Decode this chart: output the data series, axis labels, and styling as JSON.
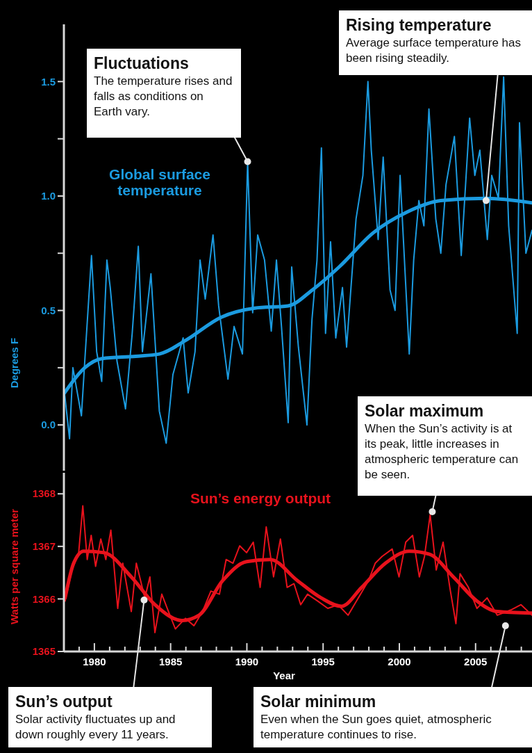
{
  "chart_data": [
    {
      "type": "line",
      "ylabel": "Degrees F",
      "xlim": [
        1978,
        2008.7
      ],
      "ylim": [
        -0.2,
        1.75
      ],
      "yticks": [
        {
          "value": 0,
          "label": "0.0"
        },
        {
          "value": 0.25,
          "label": null
        },
        0.5,
        {
          "value": 0.75,
          "label": null
        },
        {
          "value": 1,
          "label": "1.0"
        },
        {
          "value": 1.25,
          "label": null
        },
        1.5
      ],
      "tick_labels": "y",
      "series": [
        {
          "name": "Global surface temperature",
          "color": "#1b9be0",
          "x": [
            1978.04,
            1978.37,
            1978.59,
            1979.15,
            1979.37,
            1979.81,
            1980.15,
            1980.48,
            1980.82,
            1981.04,
            1981.48,
            1982.04,
            1982.48,
            1982.88,
            1983.15,
            1983.71,
            1984.26,
            1984.71,
            1985.15,
            1985.82,
            1986.15,
            1986.6,
            1986.93,
            1987.27,
            1987.78,
            1988.15,
            1988.76,
            1989.16,
            1989.71,
            1990.05,
            1990.38,
            1990.71,
            1991.16,
            1991.6,
            1991.94,
            1992.27,
            1992.71,
            1992.94,
            1993.38,
            1993.94,
            1994.27,
            1994.6,
            1994.89,
            1995.16,
            1995.49,
            1995.83,
            1996.27,
            1996.54,
            1997.16,
            1997.61,
            1997.94,
            1998.16,
            1998.61,
            1998.94,
            1999.39,
            1999.72,
            2000.05,
            2000.65,
            2000.94,
            2001.28,
            2001.61,
            2001.94,
            2002.39,
            2002.72,
            2003.06,
            2003.61,
            2004.06,
            2004.61,
            2004.95,
            2005.28,
            2005.77,
            2006.06,
            2006.5,
            2006.84,
            2007.17,
            2007.73,
            2007.88,
            2008.3,
            2008.7
          ],
          "values": [
            0.14,
            -0.06,
            0.25,
            0.04,
            0.28,
            0.74,
            0.32,
            0.19,
            0.72,
            0.6,
            0.28,
            0.07,
            0.4,
            0.78,
            0.32,
            0.66,
            0.06,
            -0.08,
            0.22,
            0.38,
            0.14,
            0.32,
            0.72,
            0.55,
            0.83,
            0.52,
            0.2,
            0.43,
            0.31,
            1.15,
            0.49,
            0.83,
            0.72,
            0.41,
            0.72,
            0.43,
            0.01,
            0.69,
            0.34,
            0.0,
            0.46,
            0.72,
            1.21,
            0.4,
            0.8,
            0.38,
            0.6,
            0.34,
            0.9,
            1.09,
            1.5,
            1.2,
            0.81,
            1.17,
            0.59,
            0.5,
            1.09,
            0.31,
            0.72,
            0.98,
            0.87,
            1.38,
            0.9,
            0.75,
            1.05,
            1.26,
            0.74,
            1.34,
            1.09,
            1.2,
            0.81,
            1.09,
            0.99,
            1.52,
            0.87,
            0.4,
            1.32,
            0.75,
            0.85
          ]
        },
        {
          "color": "#1b9be0",
          "x": [
            1978.04,
            1979.37,
            1980.5,
            1982.7,
            1984.26,
            1986,
            1988.3,
            1990.5,
            1992.7,
            1994.3,
            1996.05,
            1998.3,
            2000.5,
            2002.7,
            2005.7,
            2008.7
          ],
          "values": [
            0.14,
            0.25,
            0.29,
            0.3,
            0.31,
            0.37,
            0.47,
            0.51,
            0.52,
            0.59,
            0.69,
            0.84,
            0.93,
            0.98,
            0.99,
            0.97
          ]
        }
      ],
      "annotations": [
        {
          "text": "Fluctuations\nThe temperature rises and falls as conditions on Earth vary.",
          "x": 1990.05,
          "y": 1.15
        },
        {
          "text": "Rising temperature\nAverage surface temperature has been rising steadily.",
          "x": 2005.69,
          "y": 0.98
        }
      ]
    },
    {
      "type": "line",
      "xlabel": "Year",
      "ylabel": "Watts per square meter",
      "xlim": [
        1978,
        2008.7
      ],
      "ylim": [
        1365,
        1368.4
      ],
      "yticks": [
        1365,
        1366,
        1367,
        1368
      ],
      "xticks": [
        {
          "value": 1979,
          "label": null
        },
        1980,
        {
          "value": 1981,
          "label": null
        },
        {
          "value": 1982,
          "label": null
        },
        {
          "value": 1983,
          "label": null
        },
        {
          "value": 1984,
          "label": null
        },
        1985,
        {
          "value": 1986,
          "label": null
        },
        {
          "value": 1987,
          "label": null
        },
        {
          "value": 1988,
          "label": null
        },
        {
          "value": 1989,
          "label": null
        },
        1990,
        {
          "value": 1991,
          "label": null
        },
        {
          "value": 1992,
          "label": null
        },
        {
          "value": 1993,
          "label": null
        },
        {
          "value": 1994,
          "label": null
        },
        1995,
        {
          "value": 1996,
          "label": null
        },
        {
          "value": 1997,
          "label": null
        },
        {
          "value": 1998,
          "label": null
        },
        {
          "value": 1999,
          "label": null
        },
        2000,
        {
          "value": 2001,
          "label": null
        },
        {
          "value": 2002,
          "label": null
        },
        {
          "value": 2003,
          "label": null
        },
        {
          "value": 2004,
          "label": null
        },
        2005,
        {
          "value": 2006,
          "label": null
        },
        {
          "value": 2007,
          "label": null
        },
        {
          "value": 2008,
          "label": null
        }
      ],
      "series": [
        {
          "name": "Sun’s energy output",
          "color": "#e8121c",
          "x": [
            1978.08,
            1978.53,
            1978.97,
            1979.24,
            1979.53,
            1979.79,
            1980.08,
            1980.42,
            1980.75,
            1981.08,
            1981.53,
            1981.86,
            1982.42,
            1982.75,
            1983.31,
            1983.64,
            1983.97,
            1984.42,
            1984.86,
            1985.31,
            1985.97,
            1986.53,
            1987.09,
            1987.64,
            1988.2,
            1988.64,
            1989.09,
            1989.53,
            1989.98,
            1990.42,
            1990.87,
            1991.27,
            1991.75,
            1992.2,
            1992.64,
            1993.09,
            1993.53,
            1993.98,
            1994.64,
            1995.31,
            1995.98,
            1996.64,
            1997.31,
            1997.98,
            1998.42,
            1998.87,
            1999.53,
            1999.98,
            2000.42,
            2000.87,
            2001.31,
            2001.65,
            2002.02,
            2002.42,
            2002.87,
            2003.31,
            2003.71,
            2003.98,
            2004.53,
            2005.09,
            2005.76,
            2006.42,
            2007.31,
            2007.98,
            2008.7
          ],
          "values": [
            1365.96,
            1366.55,
            1366.88,
            1367.77,
            1366.75,
            1367.21,
            1366.62,
            1367.14,
            1366.75,
            1367.31,
            1365.82,
            1366.68,
            1365.76,
            1366.68,
            1366.02,
            1366.42,
            1365.36,
            1366.09,
            1365.76,
            1365.43,
            1365.63,
            1365.49,
            1365.76,
            1366.15,
            1366.09,
            1366.75,
            1366.68,
            1367.01,
            1366.88,
            1367.08,
            1366.22,
            1367.37,
            1366.42,
            1367.14,
            1366.22,
            1366.29,
            1365.89,
            1366.09,
            1365.96,
            1365.82,
            1365.89,
            1365.69,
            1366.02,
            1366.35,
            1366.68,
            1366.81,
            1366.95,
            1366.42,
            1367.08,
            1367.21,
            1366.42,
            1366.81,
            1367.6,
            1366.55,
            1367.08,
            1366.22,
            1365.53,
            1366.48,
            1366.22,
            1365.82,
            1366.02,
            1365.69,
            1365.79,
            1365.89,
            1365.69
          ]
        },
        {
          "color": "#e8121c",
          "x": [
            1978.08,
            1978.64,
            1979.3,
            1980.64,
            1982.42,
            1983.97,
            1985.75,
            1986.86,
            1988.42,
            1989.98,
            1991.53,
            1993.31,
            1994.87,
            1996.2,
            1997.53,
            1999.09,
            2000.65,
            2001.98,
            2003.54,
            2005.09,
            2006.42,
            2008.7
          ],
          "values": [
            1366.02,
            1366.68,
            1366.91,
            1366.88,
            1366.42,
            1365.89,
            1365.59,
            1365.69,
            1366.35,
            1366.71,
            1366.75,
            1366.35,
            1366.02,
            1365.86,
            1366.22,
            1366.68,
            1366.91,
            1366.85,
            1366.42,
            1365.96,
            1365.76,
            1365.73
          ]
        }
      ],
      "annotations": [
        {
          "text": "Solar maximum\nWhen the Sun’s activity is at its peak, little increases in atmospheric temperature can be seen.",
          "x": 2002.16,
          "y": 1367.66
        },
        {
          "text": "Sun’s output\nSolar activity fluctuates up and down roughly every 11 years.",
          "x": 1983.26,
          "y": 1365.98
        },
        {
          "text": "Solar minimum\nEven when the Sun goes quiet, atmospheric temperature continues to rise.",
          "x": 2006.96,
          "y": 1365.49
        }
      ]
    }
  ]
}
